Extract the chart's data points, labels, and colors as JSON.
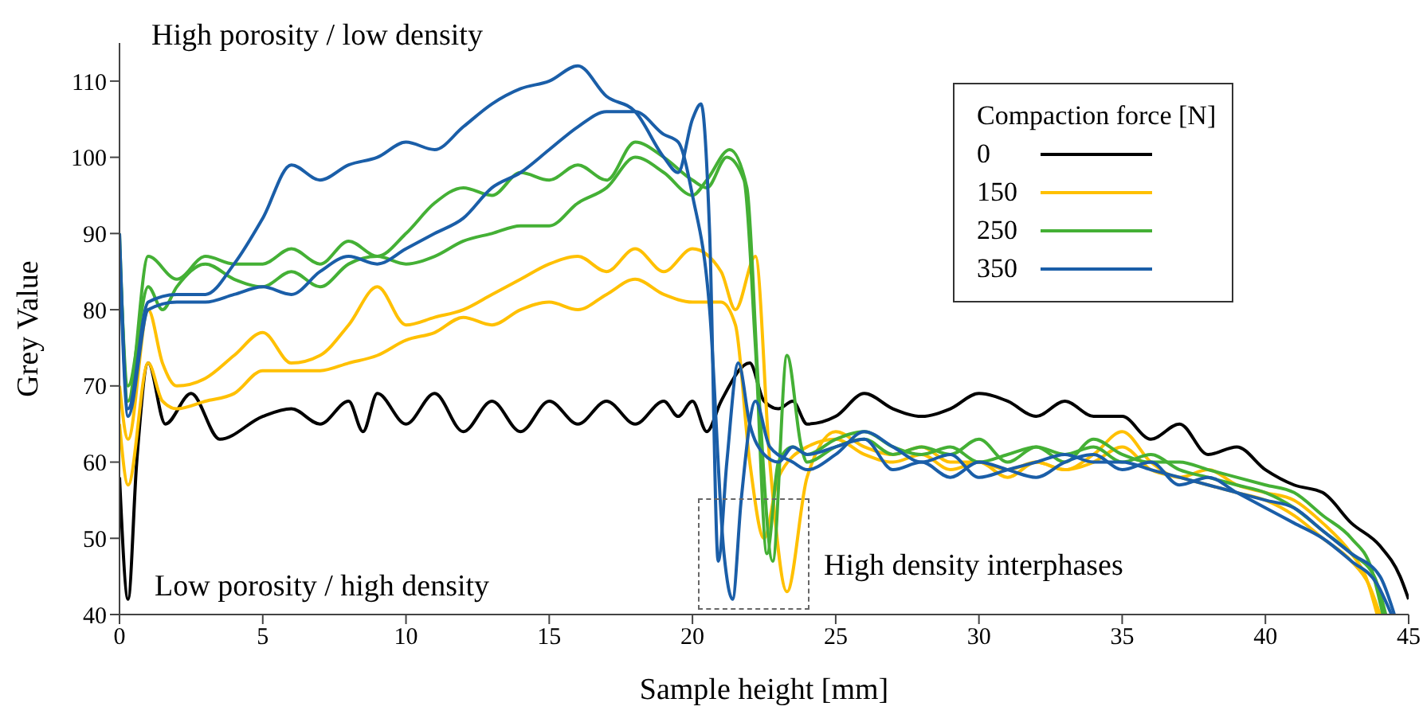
{
  "chart_data": {
    "type": "line",
    "xlabel": "Sample height [mm]",
    "ylabel": "Grey Value",
    "legend_title": "Compaction force [N]",
    "legend": "top right",
    "marker": "none",
    "line_style": "solid",
    "xlim": [
      0,
      45
    ],
    "xticks": [
      0,
      5,
      10,
      15,
      20,
      25,
      30,
      35,
      40,
      45
    ],
    "ylim": [
      40,
      115
    ],
    "yticks": [
      40,
      50,
      60,
      70,
      80,
      90,
      100,
      110
    ],
    "annotations": [
      "High porosity / low density",
      "Low porosity / high density",
      "High density interphases"
    ],
    "series": [
      {
        "name": "0",
        "color": "#000000",
        "x": [
          0,
          0.3,
          0.6,
          1,
          1.6,
          2.5,
          3.5,
          5,
          6,
          7,
          8,
          8.5,
          9,
          10,
          11,
          12,
          13,
          14,
          15,
          16,
          17,
          18,
          19,
          19.5,
          20,
          20.5,
          21,
          22,
          22.5,
          23,
          23.5,
          24,
          25,
          26,
          27,
          28,
          29,
          30,
          31,
          32,
          33,
          34,
          35,
          36,
          37,
          38,
          39,
          40,
          41,
          42,
          43,
          44,
          44.7,
          45
        ],
        "values": [
          58,
          42,
          60,
          73,
          65,
          69,
          63,
          66,
          67,
          65,
          68,
          64,
          69,
          65,
          69,
          64,
          68,
          64,
          68,
          65,
          68,
          65,
          68,
          66,
          68,
          64,
          68,
          73,
          68,
          67,
          68,
          65,
          66,
          69,
          67,
          66,
          67,
          69,
          68,
          66,
          68,
          66,
          66,
          63,
          65,
          61,
          62,
          59,
          57,
          56,
          52,
          49,
          45,
          42
        ]
      },
      {
        "name": "150",
        "color": "#ffc000",
        "x": [
          0,
          0.3,
          1,
          1.5,
          2,
          3,
          4,
          5,
          6,
          7,
          8,
          9,
          10,
          11,
          12,
          13,
          14,
          15,
          16,
          17,
          18,
          19,
          20,
          21,
          21.5,
          22.2,
          22.7,
          23.3,
          24,
          25,
          26,
          27,
          28,
          29,
          30,
          31,
          32,
          33,
          34,
          35,
          36,
          37,
          38,
          39,
          40,
          41,
          42,
          43,
          43.5,
          43.9
        ],
        "values": [
          70,
          63,
          80,
          73,
          70,
          71,
          74,
          77,
          73,
          74,
          78,
          83,
          78,
          79,
          80,
          82,
          84,
          86,
          87,
          85,
          88,
          85,
          88,
          85,
          80,
          87,
          60,
          43,
          58,
          64,
          62,
          61,
          62,
          60,
          60,
          59,
          60,
          59,
          61,
          64,
          60,
          58,
          59,
          57,
          56,
          55,
          52,
          48,
          45,
          40
        ]
      },
      {
        "color": "#ffc000",
        "x": [
          0,
          0.3,
          1,
          1.5,
          2,
          3,
          4,
          5,
          6,
          7,
          8,
          9,
          10,
          11,
          12,
          13,
          14,
          15,
          16,
          17,
          18,
          19,
          20,
          21,
          21.5,
          22,
          22.5,
          23,
          24,
          25,
          26,
          27,
          28,
          29,
          30,
          31,
          32,
          33,
          34,
          35,
          36,
          37,
          38,
          39,
          40,
          41,
          42,
          43,
          43.6,
          44
        ],
        "values": [
          65,
          57,
          73,
          68,
          67,
          68,
          69,
          72,
          72,
          72,
          73,
          74,
          76,
          77,
          79,
          78,
          80,
          81,
          80,
          82,
          84,
          82,
          81,
          81,
          78,
          60,
          50,
          58,
          62,
          63,
          61,
          60,
          61,
          59,
          60,
          58,
          60,
          59,
          60,
          62,
          59,
          58,
          57,
          56,
          55,
          53,
          50,
          47,
          44,
          40
        ]
      },
      {
        "name": "250",
        "color": "#44b035",
        "x": [
          0,
          0.3,
          1,
          2,
          3,
          4,
          5,
          6,
          7,
          8,
          9,
          10,
          11,
          12,
          13,
          14,
          15,
          16,
          17,
          18,
          19,
          20,
          20.5,
          21.2,
          21.8,
          22.2,
          22.6,
          23,
          23.5,
          24,
          25,
          26,
          27,
          28,
          29,
          30,
          31,
          32,
          33,
          34,
          35,
          36,
          37,
          38,
          39,
          40,
          41,
          42,
          43,
          43.7,
          44.1
        ],
        "values": [
          90,
          68,
          87,
          84,
          87,
          86,
          86,
          88,
          86,
          89,
          87,
          90,
          94,
          96,
          95,
          98,
          97,
          99,
          97,
          102,
          100,
          97,
          96,
          100,
          97,
          75,
          48,
          60,
          62,
          61,
          63,
          64,
          62,
          61,
          62,
          60,
          61,
          62,
          60,
          63,
          61,
          60,
          60,
          59,
          58,
          57,
          56,
          53,
          50,
          46,
          40
        ]
      },
      {
        "color": "#44b035",
        "x": [
          0,
          0.3,
          1,
          1.5,
          2,
          3,
          4,
          5,
          6,
          7,
          8,
          9,
          10,
          11,
          12,
          13,
          14,
          15,
          16,
          17,
          18,
          19,
          20,
          20.5,
          21.3,
          21.9,
          22.3,
          22.8,
          23.3,
          23.8,
          24,
          25,
          26,
          27,
          28,
          29,
          30,
          31,
          32,
          33,
          34,
          35,
          36,
          37,
          38,
          39,
          40,
          41,
          42,
          43,
          43.8,
          44.2
        ],
        "values": [
          88,
          70,
          83,
          80,
          83,
          86,
          84,
          83,
          85,
          83,
          86,
          87,
          86,
          87,
          89,
          90,
          91,
          91,
          94,
          96,
          100,
          98,
          95,
          97,
          101,
          96,
          70,
          47,
          74,
          62,
          60,
          62,
          63,
          61,
          62,
          61,
          63,
          60,
          62,
          61,
          62,
          60,
          61,
          59,
          58,
          57,
          56,
          54,
          51,
          48,
          45,
          40
        ]
      },
      {
        "name": "350",
        "color": "#1a5ea8",
        "x": [
          0,
          0.3,
          1,
          2,
          3,
          4,
          5,
          6,
          7,
          8,
          9,
          10,
          11,
          12,
          13,
          14,
          15,
          16,
          17,
          18,
          19,
          19.5,
          20,
          20.3,
          20.6,
          20.9,
          21.2,
          21.6,
          22,
          22.5,
          23,
          23.5,
          24,
          25,
          26,
          27,
          28,
          29,
          30,
          31,
          32,
          33,
          34,
          35,
          36,
          37,
          38,
          39,
          40,
          41,
          42,
          43,
          43.9,
          44.4
        ],
        "values": [
          90,
          67,
          81,
          82,
          82,
          86,
          92,
          99,
          97,
          99,
          100,
          102,
          101,
          104,
          107,
          109,
          110,
          112,
          108,
          106,
          100,
          98,
          105,
          107,
          90,
          47,
          60,
          73,
          65,
          61,
          60,
          62,
          61,
          62,
          63,
          59,
          60,
          58,
          60,
          59,
          58,
          60,
          61,
          59,
          60,
          57,
          58,
          56,
          54,
          52,
          50,
          47,
          44,
          40
        ]
      },
      {
        "color": "#1a5ea8",
        "x": [
          0,
          0.3,
          1,
          2,
          3,
          4,
          5,
          6,
          7,
          8,
          9,
          10,
          11,
          12,
          13,
          14,
          15,
          16,
          17,
          18,
          19,
          19.5,
          20,
          20.6,
          21.1,
          21.4,
          21.7,
          22.2,
          22.7,
          23.5,
          24,
          25,
          26,
          27,
          28,
          29,
          30,
          31,
          32,
          33,
          34,
          35,
          36,
          37,
          38,
          39,
          40,
          41,
          42,
          43,
          44,
          44.5
        ],
        "values": [
          88,
          66,
          80,
          81,
          81,
          82,
          83,
          82,
          85,
          87,
          86,
          88,
          90,
          92,
          96,
          98,
          101,
          104,
          106,
          106,
          103,
          102,
          95,
          80,
          48,
          42,
          55,
          68,
          62,
          60,
          59,
          61,
          64,
          62,
          60,
          61,
          58,
          59,
          60,
          61,
          60,
          60,
          59,
          58,
          57,
          56,
          55,
          54,
          51,
          48,
          45,
          40
        ]
      }
    ]
  }
}
